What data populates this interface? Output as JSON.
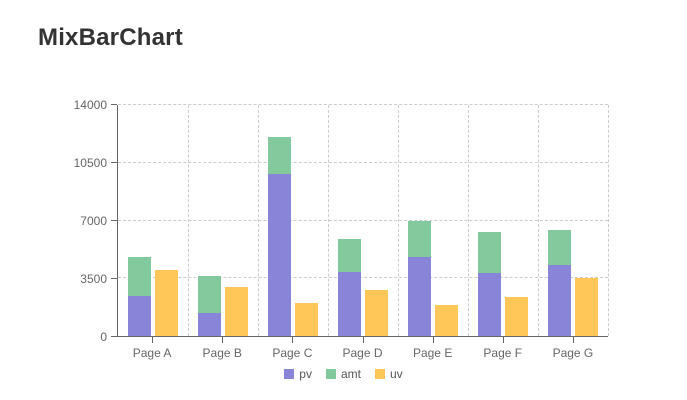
{
  "title": "MixBarChart",
  "chart_data": {
    "type": "bar",
    "title": "MixBarChart",
    "categories": [
      "Page A",
      "Page B",
      "Page C",
      "Page D",
      "Page E",
      "Page F",
      "Page G"
    ],
    "series": [
      {
        "name": "pv",
        "color": "#8884d8",
        "stack": "a",
        "values": [
          2400,
          1398,
          9800,
          3908,
          4800,
          3800,
          4300
        ]
      },
      {
        "name": "amt",
        "color": "#82ca9d",
        "stack": "a",
        "values": [
          2400,
          2210,
          2290,
          2000,
          2181,
          2500,
          2100
        ]
      },
      {
        "name": "uv",
        "color": "#ffc658",
        "stack": null,
        "values": [
          4000,
          3000,
          2000,
          2780,
          1890,
          2390,
          3490
        ]
      }
    ],
    "xlabel": "",
    "ylabel": "",
    "ylim": [
      0,
      14000
    ],
    "yticks": [
      0,
      3500,
      7000,
      10500,
      14000
    ],
    "grid": "dashed",
    "legend_position": "bottom",
    "axis_color": "#666666",
    "grid_color": "#cccccc",
    "tick_label_color": "#666666"
  }
}
